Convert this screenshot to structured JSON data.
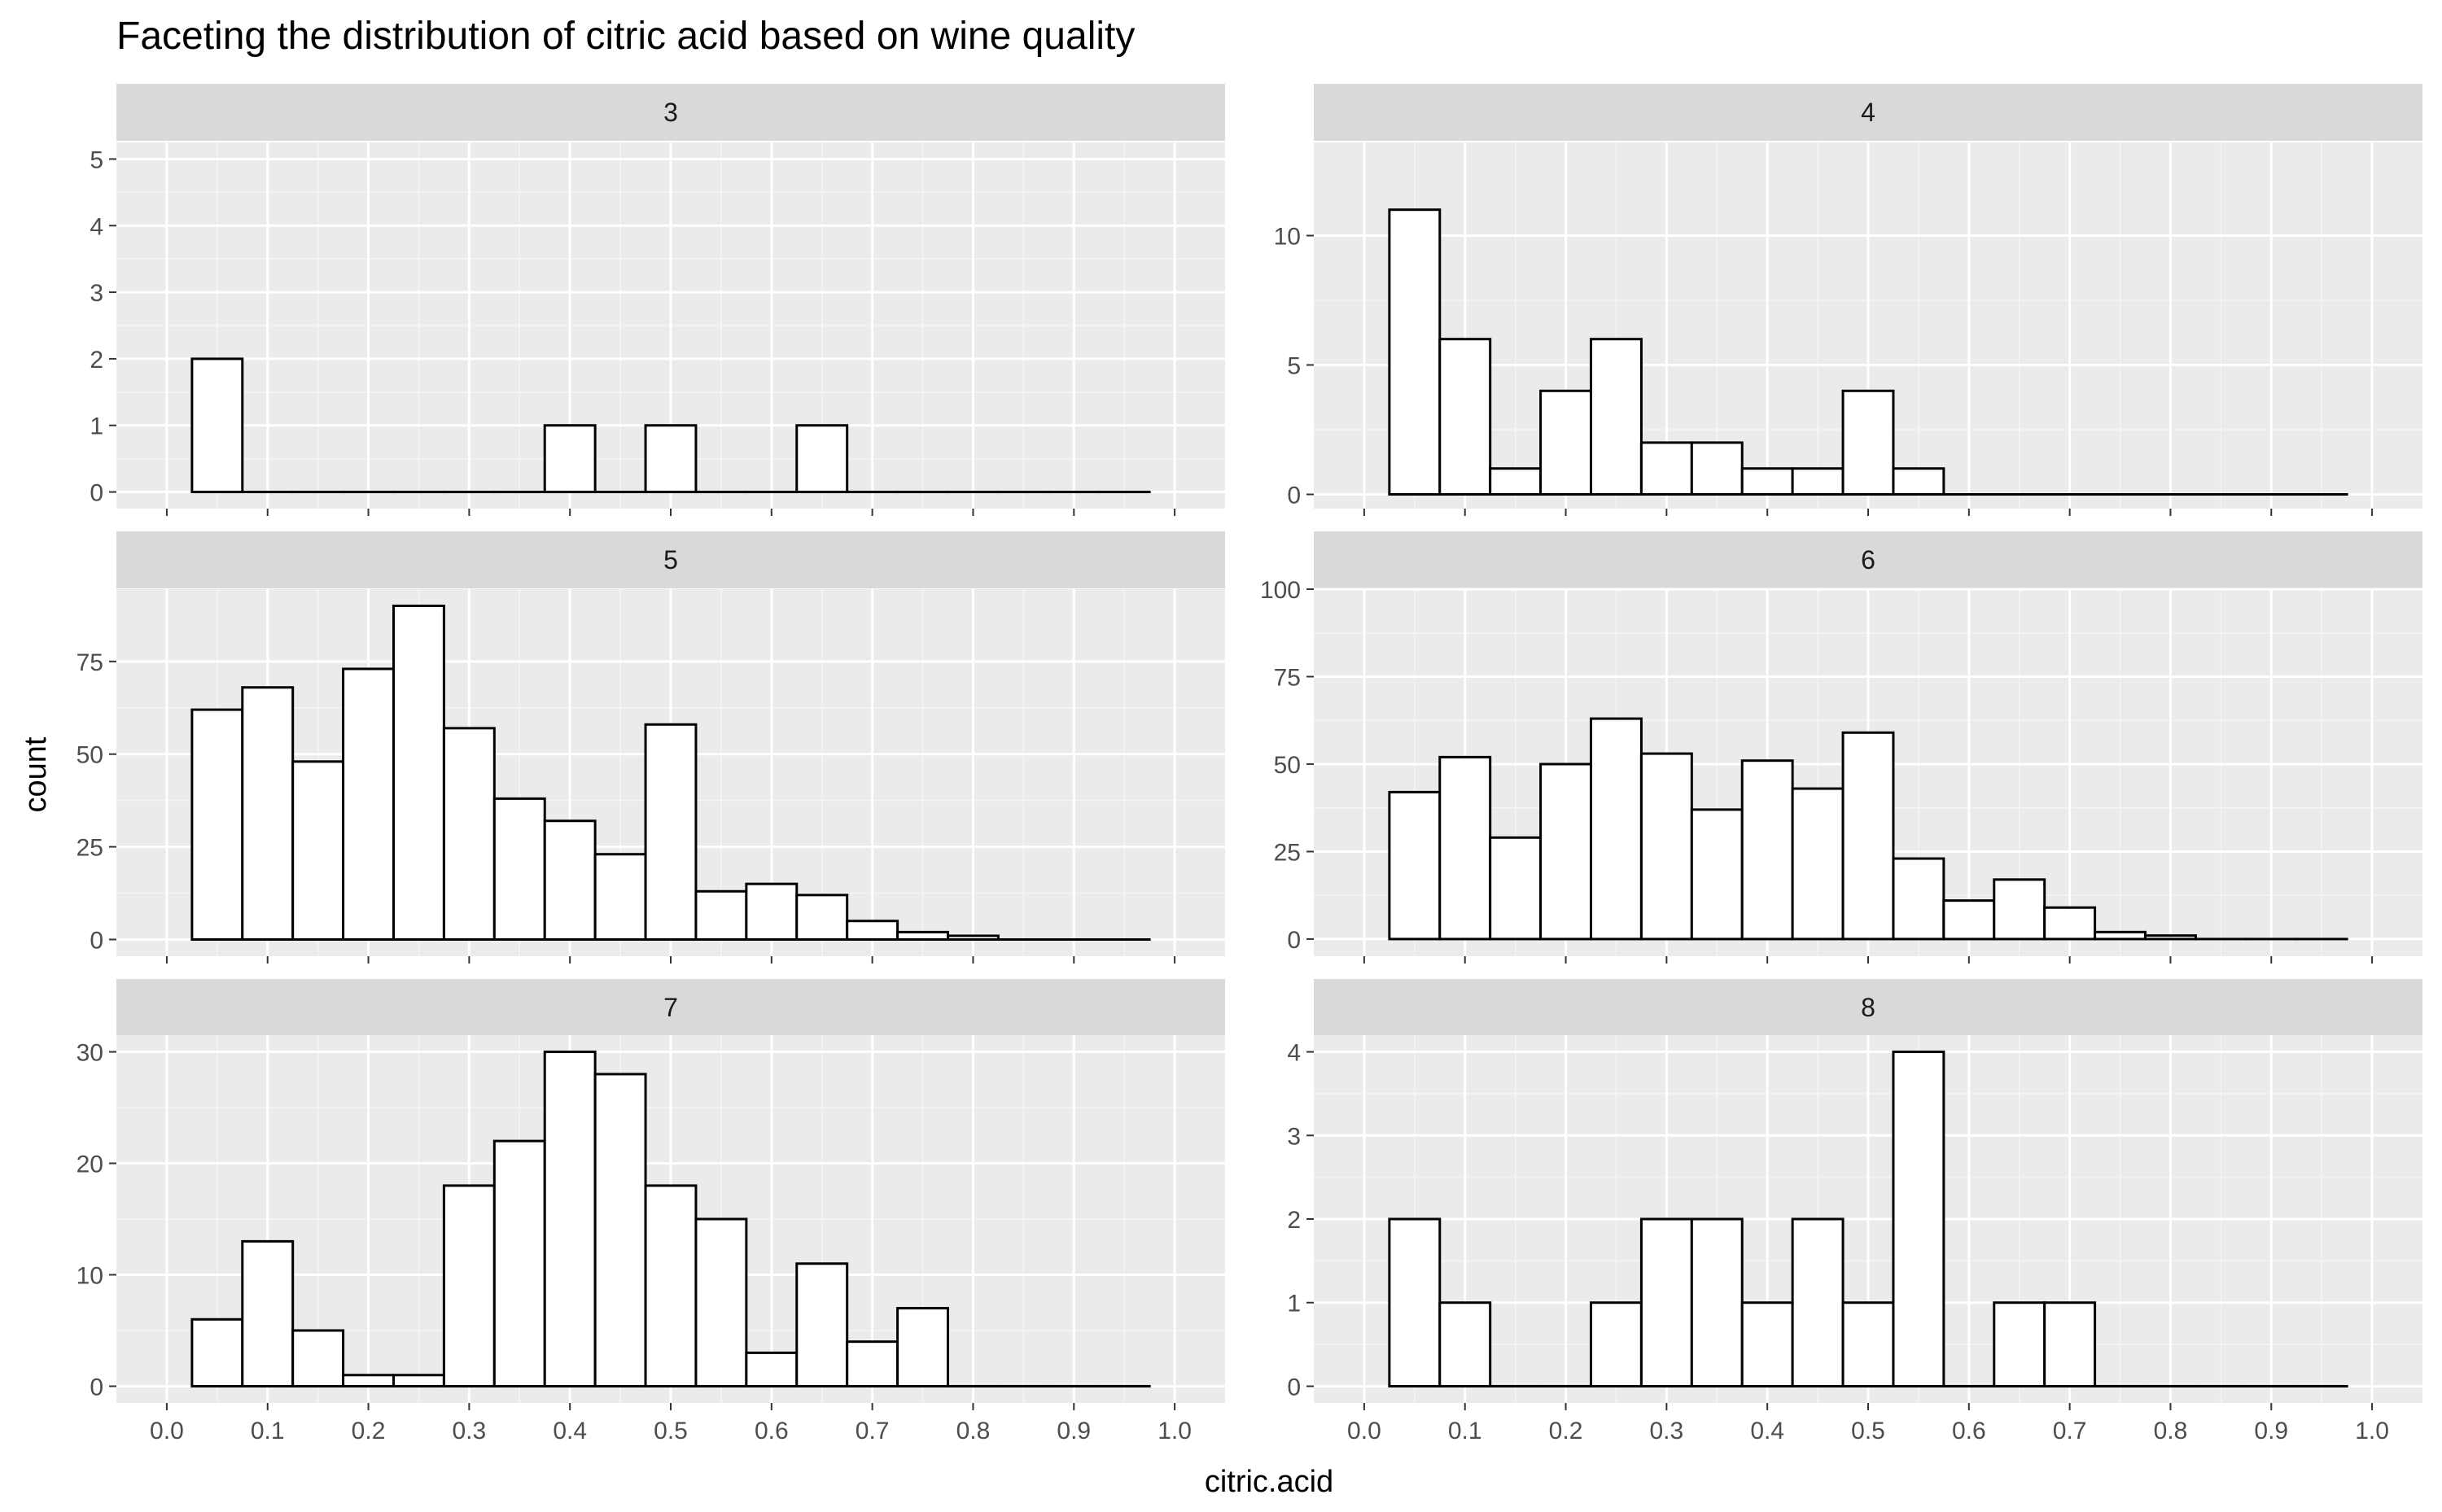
{
  "chart_data": {
    "type": "bar",
    "title": "Faceting the distribution of citric acid based on wine quality",
    "xlabel": "citric.acid",
    "ylabel": "count",
    "xlim": [
      -0.05,
      1.05
    ],
    "x_ticks": [
      0.0,
      0.1,
      0.2,
      0.3,
      0.4,
      0.5,
      0.6,
      0.7,
      0.8,
      0.9,
      1.0
    ],
    "x_tick_labels": [
      "0.0",
      "0.1",
      "0.2",
      "0.3",
      "0.4",
      "0.5",
      "0.6",
      "0.7",
      "0.8",
      "0.9",
      "1.0"
    ],
    "bin_width": 0.05,
    "bin_centers": [
      0.05,
      0.1,
      0.15,
      0.2,
      0.25,
      0.3,
      0.35,
      0.4,
      0.45,
      0.5,
      0.55,
      0.6,
      0.65,
      0.7,
      0.75,
      0.8,
      0.85,
      0.9,
      0.95
    ],
    "facets": [
      {
        "label": "3",
        "ylim": [
          -0.25,
          5.25
        ],
        "y_ticks": [
          0,
          1,
          2,
          3,
          4,
          5
        ],
        "y_tick_labels": [
          "0",
          "1",
          "2",
          "3",
          "4",
          "5"
        ],
        "values": [
          2,
          0,
          0,
          0,
          0,
          0,
          0,
          1,
          0,
          1,
          0,
          0,
          1,
          0,
          0,
          0,
          0,
          0,
          0
        ]
      },
      {
        "label": "4",
        "ylim": [
          -0.55,
          13.6
        ],
        "y_ticks": [
          0,
          5,
          10
        ],
        "y_tick_labels": [
          "0",
          "5",
          "10"
        ],
        "values": [
          11,
          6,
          1,
          4,
          6,
          2,
          2,
          1,
          1,
          4,
          1,
          0,
          0,
          0,
          0,
          0,
          0,
          0,
          0
        ]
      },
      {
        "label": "5",
        "ylim": [
          -4.5,
          94.5
        ],
        "y_ticks": [
          0,
          25,
          50,
          75
        ],
        "y_tick_labels": [
          "0",
          "25",
          "50",
          "75"
        ],
        "values": [
          62,
          68,
          48,
          73,
          90,
          57,
          38,
          32,
          23,
          58,
          13,
          15,
          12,
          5,
          2,
          1,
          0,
          0,
          0
        ]
      },
      {
        "label": "6",
        "ylim": [
          -4.9,
          100
        ],
        "y_ticks": [
          0,
          25,
          50,
          75,
          100
        ],
        "y_tick_labels": [
          "0",
          "25",
          "50",
          "75",
          "100"
        ],
        "values": [
          42,
          52,
          29,
          50,
          63,
          53,
          37,
          51,
          43,
          59,
          23,
          11,
          17,
          9,
          2,
          1,
          0,
          0,
          0
        ]
      },
      {
        "label": "7",
        "ylim": [
          -1.5,
          31.5
        ],
        "y_ticks": [
          0,
          10,
          20,
          30
        ],
        "y_tick_labels": [
          "0",
          "10",
          "20",
          "30"
        ],
        "values": [
          6,
          13,
          5,
          1,
          1,
          18,
          22,
          30,
          28,
          18,
          15,
          3,
          11,
          4,
          7,
          0,
          0,
          0,
          0
        ]
      },
      {
        "label": "8",
        "ylim": [
          -0.2,
          4.2
        ],
        "y_ticks": [
          0,
          1,
          2,
          3,
          4
        ],
        "y_tick_labels": [
          "0",
          "1",
          "2",
          "3",
          "4"
        ],
        "values": [
          2,
          1,
          0,
          0,
          1,
          2,
          2,
          1,
          2,
          1,
          4,
          0,
          1,
          1,
          0,
          0,
          0,
          0,
          0
        ]
      }
    ],
    "colors": {
      "panel_background": "#ebebeb",
      "strip_background": "#d9d9d9",
      "grid_major": "#ffffff",
      "grid_minor": "#f5f5f5",
      "bar_fill": "#ffffff",
      "bar_outline": "#000000",
      "tick_text": "#4d4d4d"
    }
  }
}
